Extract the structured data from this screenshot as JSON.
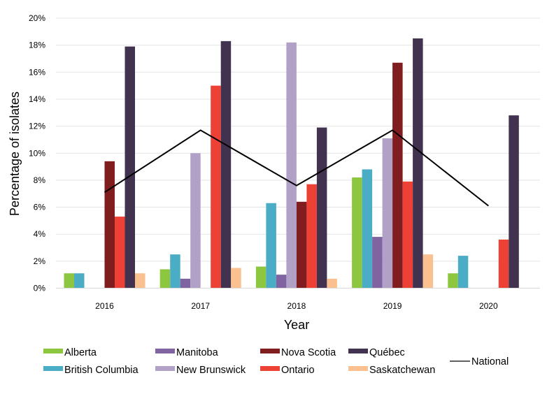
{
  "chart_data": {
    "type": "bar",
    "title": "",
    "xlabel": "Year",
    "ylabel": "Percentage of isolates",
    "ylim": [
      0,
      20
    ],
    "ytick_step": 2,
    "ytick_labels": [
      "0%",
      "2%",
      "4%",
      "6%",
      "8%",
      "10%",
      "12%",
      "14%",
      "16%",
      "18%",
      "20%"
    ],
    "grid": true,
    "legend_position": "bottom",
    "categories": [
      "2016",
      "2017",
      "2018",
      "2019",
      "2020"
    ],
    "series": [
      {
        "name": "Alberta",
        "color": "#8DC63F",
        "values": [
          1.1,
          1.4,
          1.6,
          8.2,
          1.1
        ]
      },
      {
        "name": "British Columbia",
        "color": "#4BACC6",
        "values": [
          1.1,
          2.5,
          6.3,
          8.8,
          2.4
        ]
      },
      {
        "name": "Manitoba",
        "color": "#8064A2",
        "values": [
          0,
          0.7,
          1.0,
          3.8,
          0
        ]
      },
      {
        "name": "New Brunswick",
        "color": "#B2A1C7",
        "values": [
          0,
          10.0,
          18.2,
          11.1,
          0
        ]
      },
      {
        "name": "Nova Scotia",
        "color": "#7F1D1F",
        "values": [
          9.4,
          0,
          6.4,
          16.7,
          0
        ]
      },
      {
        "name": "Ontario",
        "color": "#EE4136",
        "values": [
          5.3,
          15.0,
          7.7,
          7.9,
          3.6
        ]
      },
      {
        "name": "Québec",
        "color": "#41334F",
        "values": [
          17.9,
          18.3,
          11.9,
          18.5,
          12.8
        ]
      },
      {
        "name": "Saskatchewan",
        "color": "#FAC090",
        "values": [
          1.1,
          1.5,
          0.7,
          2.5,
          0
        ]
      }
    ],
    "line_series": {
      "name": "National",
      "color": "#000000",
      "values": [
        7.1,
        11.7,
        7.6,
        11.7,
        6.1
      ]
    },
    "legend_order": [
      "Alberta",
      "British Columbia",
      "Manitoba",
      "New Brunswick",
      "Nova Scotia",
      "Ontario",
      "Québec",
      "Saskatchewan",
      "National"
    ]
  }
}
